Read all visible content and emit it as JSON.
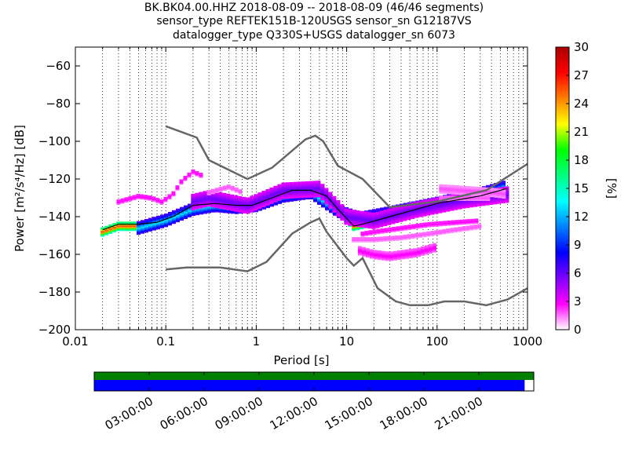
{
  "title": {
    "line1": "BK.BK04.00.HHZ   2018-08-09 -- 2018-08-09  (46/46 segments)",
    "line2": "sensor_type REFTEK151B-120USGS sensor_sn G12187VS",
    "line3": "datalogger_type Q330S+USGS datalogger_sn 6073"
  },
  "chart_data": [
    {
      "type": "heatmap",
      "xlabel": "Period [s]",
      "ylabel": "Power [m²/s⁴/Hz] [dB]",
      "xscale": "log",
      "xlim": [
        0.01,
        1000
      ],
      "ylim": [
        -200,
        -50
      ],
      "xticks": [
        0.01,
        0.1,
        1,
        10,
        100,
        1000
      ],
      "xtick_labels": [
        "0.01",
        "0.1",
        "1",
        "10",
        "100",
        "1000"
      ],
      "yticks": [
        -200,
        -180,
        -160,
        -140,
        -120,
        -100,
        -80,
        -60
      ],
      "ytick_labels": [
        "−200",
        "−180",
        "−160",
        "−140",
        "−120",
        "−100",
        "−80",
        "−60"
      ],
      "grid": "vertical dotted at log minor ticks",
      "noise_models": {
        "high": [
          [
            0.1,
            -92
          ],
          [
            0.22,
            -98
          ],
          [
            0.3,
            -110
          ],
          [
            0.8,
            -120
          ],
          [
            1.5,
            -114
          ],
          [
            3.5,
            -99
          ],
          [
            4.5,
            -97
          ],
          [
            5.5,
            -100
          ],
          [
            8,
            -113
          ],
          [
            15,
            -120
          ],
          [
            30,
            -135
          ],
          [
            100,
            -132
          ],
          [
            350,
            -126
          ],
          [
            1000,
            -112
          ]
        ],
        "low": [
          [
            0.1,
            -168
          ],
          [
            0.17,
            -167
          ],
          [
            0.4,
            -167
          ],
          [
            0.8,
            -169
          ],
          [
            1.3,
            -164
          ],
          [
            2.5,
            -149
          ],
          [
            4,
            -143
          ],
          [
            5,
            -141
          ],
          [
            6,
            -148
          ],
          [
            10,
            -162
          ],
          [
            12,
            -166
          ],
          [
            15,
            -162
          ],
          [
            22,
            -178
          ],
          [
            35,
            -185
          ],
          [
            50,
            -187
          ],
          [
            80,
            -187
          ],
          [
            120,
            -185
          ],
          [
            200,
            -185
          ],
          [
            350,
            -187
          ],
          [
            600,
            -184
          ],
          [
            1000,
            -178
          ]
        ]
      },
      "mode_curve": [
        [
          0.02,
          -147
        ],
        [
          0.03,
          -144
        ],
        [
          0.05,
          -144
        ],
        [
          0.08,
          -143
        ],
        [
          0.12,
          -140
        ],
        [
          0.2,
          -134
        ],
        [
          0.35,
          -133
        ],
        [
          0.6,
          -134
        ],
        [
          0.9,
          -134
        ],
        [
          1.5,
          -130
        ],
        [
          2.5,
          -126
        ],
        [
          4,
          -126
        ],
        [
          6,
          -129
        ],
        [
          8,
          -136
        ],
        [
          12,
          -145
        ],
        [
          15,
          -144
        ],
        [
          30,
          -140
        ],
        [
          100,
          -133
        ],
        [
          300,
          -129
        ],
        [
          600,
          -125
        ]
      ],
      "density_bands": [
        {
          "center": [
            [
              0.02,
              -148
            ],
            [
              0.03,
              -145
            ],
            [
              0.05,
              -145
            ],
            [
              0.08,
              -144
            ],
            [
              0.12,
              -141
            ],
            [
              0.2,
              -135
            ],
            [
              0.35,
              -133
            ],
            [
              0.6,
              -134
            ],
            [
              0.9,
              -134
            ],
            [
              1.5,
              -131
            ],
            [
              2.5,
              -127
            ],
            [
              4,
              -126
            ],
            [
              6,
              -129
            ],
            [
              8,
              -136
            ],
            [
              12,
              -145
            ],
            [
              15,
              -144
            ],
            [
              30,
              -140
            ],
            [
              100,
              -134
            ],
            [
              300,
              -130
            ],
            [
              600,
              -127
            ]
          ],
          "half_width_db": 2,
          "percent": 27
        },
        {
          "center": [
            [
              0.05,
              -146
            ],
            [
              0.1,
              -142
            ],
            [
              0.2,
              -136
            ],
            [
              0.35,
              -134
            ],
            [
              0.6,
              -135
            ],
            [
              1,
              -134
            ],
            [
              2,
              -129
            ],
            [
              4,
              -127
            ],
            [
              8,
              -137
            ],
            [
              14,
              -141
            ],
            [
              30,
              -138
            ],
            [
              100,
              -133
            ],
            [
              300,
              -128
            ],
            [
              600,
              -124
            ]
          ],
          "half_width_db": 3,
          "percent": 13
        },
        {
          "center": [
            [
              0.2,
              -132
            ],
            [
              0.3,
              -130
            ],
            [
              0.5,
              -132
            ],
            [
              0.8,
              -134
            ],
            [
              2,
              -126
            ],
            [
              5,
              -125
            ],
            [
              10,
              -140
            ],
            [
              20,
              -142
            ],
            [
              60,
              -136
            ],
            [
              200,
              -131
            ],
            [
              600,
              -128
            ]
          ],
          "half_width_db": 4,
          "percent": 6
        },
        {
          "center": [
            [
              0.03,
              -132
            ],
            [
              0.05,
              -129
            ],
            [
              0.07,
              -130
            ],
            [
              0.09,
              -132
            ],
            [
              0.12,
              -128
            ],
            [
              0.15,
              -121
            ],
            [
              0.2,
              -116
            ],
            [
              0.25,
              -118
            ]
          ],
          "half_width_db": 1,
          "percent": 3
        },
        {
          "center": [
            [
              0.3,
              -127
            ],
            [
              0.5,
              -124
            ],
            [
              0.7,
              -127
            ]
          ],
          "half_width_db": 1,
          "percent": 2
        },
        {
          "center": [
            [
              15,
              -149
            ],
            [
              20,
              -148
            ],
            [
              40,
              -146
            ],
            [
              80,
              -144
            ],
            [
              150,
              -143
            ],
            [
              300,
              -142
            ]
          ],
          "half_width_db": 1,
          "percent": 3
        },
        {
          "center": [
            [
              12,
              -152
            ],
            [
              20,
              -152
            ],
            [
              40,
              -151
            ],
            [
              80,
              -149
            ],
            [
              150,
              -147
            ],
            [
              300,
              -145
            ]
          ],
          "half_width_db": 1,
          "percent": 2
        },
        {
          "center": [
            [
              14,
              -158
            ],
            [
              20,
              -160
            ],
            [
              30,
              -161
            ],
            [
              60,
              -159
            ],
            [
              100,
              -156
            ]
          ],
          "half_width_db": 2,
          "percent": 3
        },
        {
          "center": [
            [
              100,
              -125
            ],
            [
              200,
              -126
            ],
            [
              400,
              -127
            ],
            [
              600,
              -128
            ]
          ],
          "half_width_db": 2,
          "percent": 2
        },
        {
          "center": [
            [
              100,
              -130
            ],
            [
              200,
              -130
            ],
            [
              400,
              -130
            ]
          ],
          "half_width_db": 1,
          "percent": 2
        }
      ],
      "colorbar": {
        "label": "[%]",
        "min": 0,
        "max": 30,
        "ticks": [
          0,
          3,
          6,
          9,
          12,
          15,
          18,
          21,
          24,
          27,
          30
        ],
        "colors": [
          "#ffffff",
          "#ff00ff",
          "#8000ff",
          "#0000ff",
          "#0080ff",
          "#00ffff",
          "#00ff80",
          "#00ff00",
          "#ffff00",
          "#ff8000",
          "#ff0000",
          "#aa0000"
        ]
      }
    },
    {
      "type": "bar",
      "subtype": "timeline",
      "xlabels": [
        "03:00:00",
        "06:00:00",
        "09:00:00",
        "12:00:00",
        "15:00:00",
        "18:00:00",
        "21:00:00"
      ],
      "xlim_hours": [
        0,
        24
      ],
      "xticks_hours": [
        3,
        6,
        9,
        12,
        15,
        18,
        21
      ],
      "bars": [
        {
          "color": "#008000",
          "start_hour": 0,
          "end_hour": 24
        },
        {
          "color": "#0000ff",
          "start_hour": 0,
          "end_hour": 23.5
        }
      ]
    }
  ]
}
